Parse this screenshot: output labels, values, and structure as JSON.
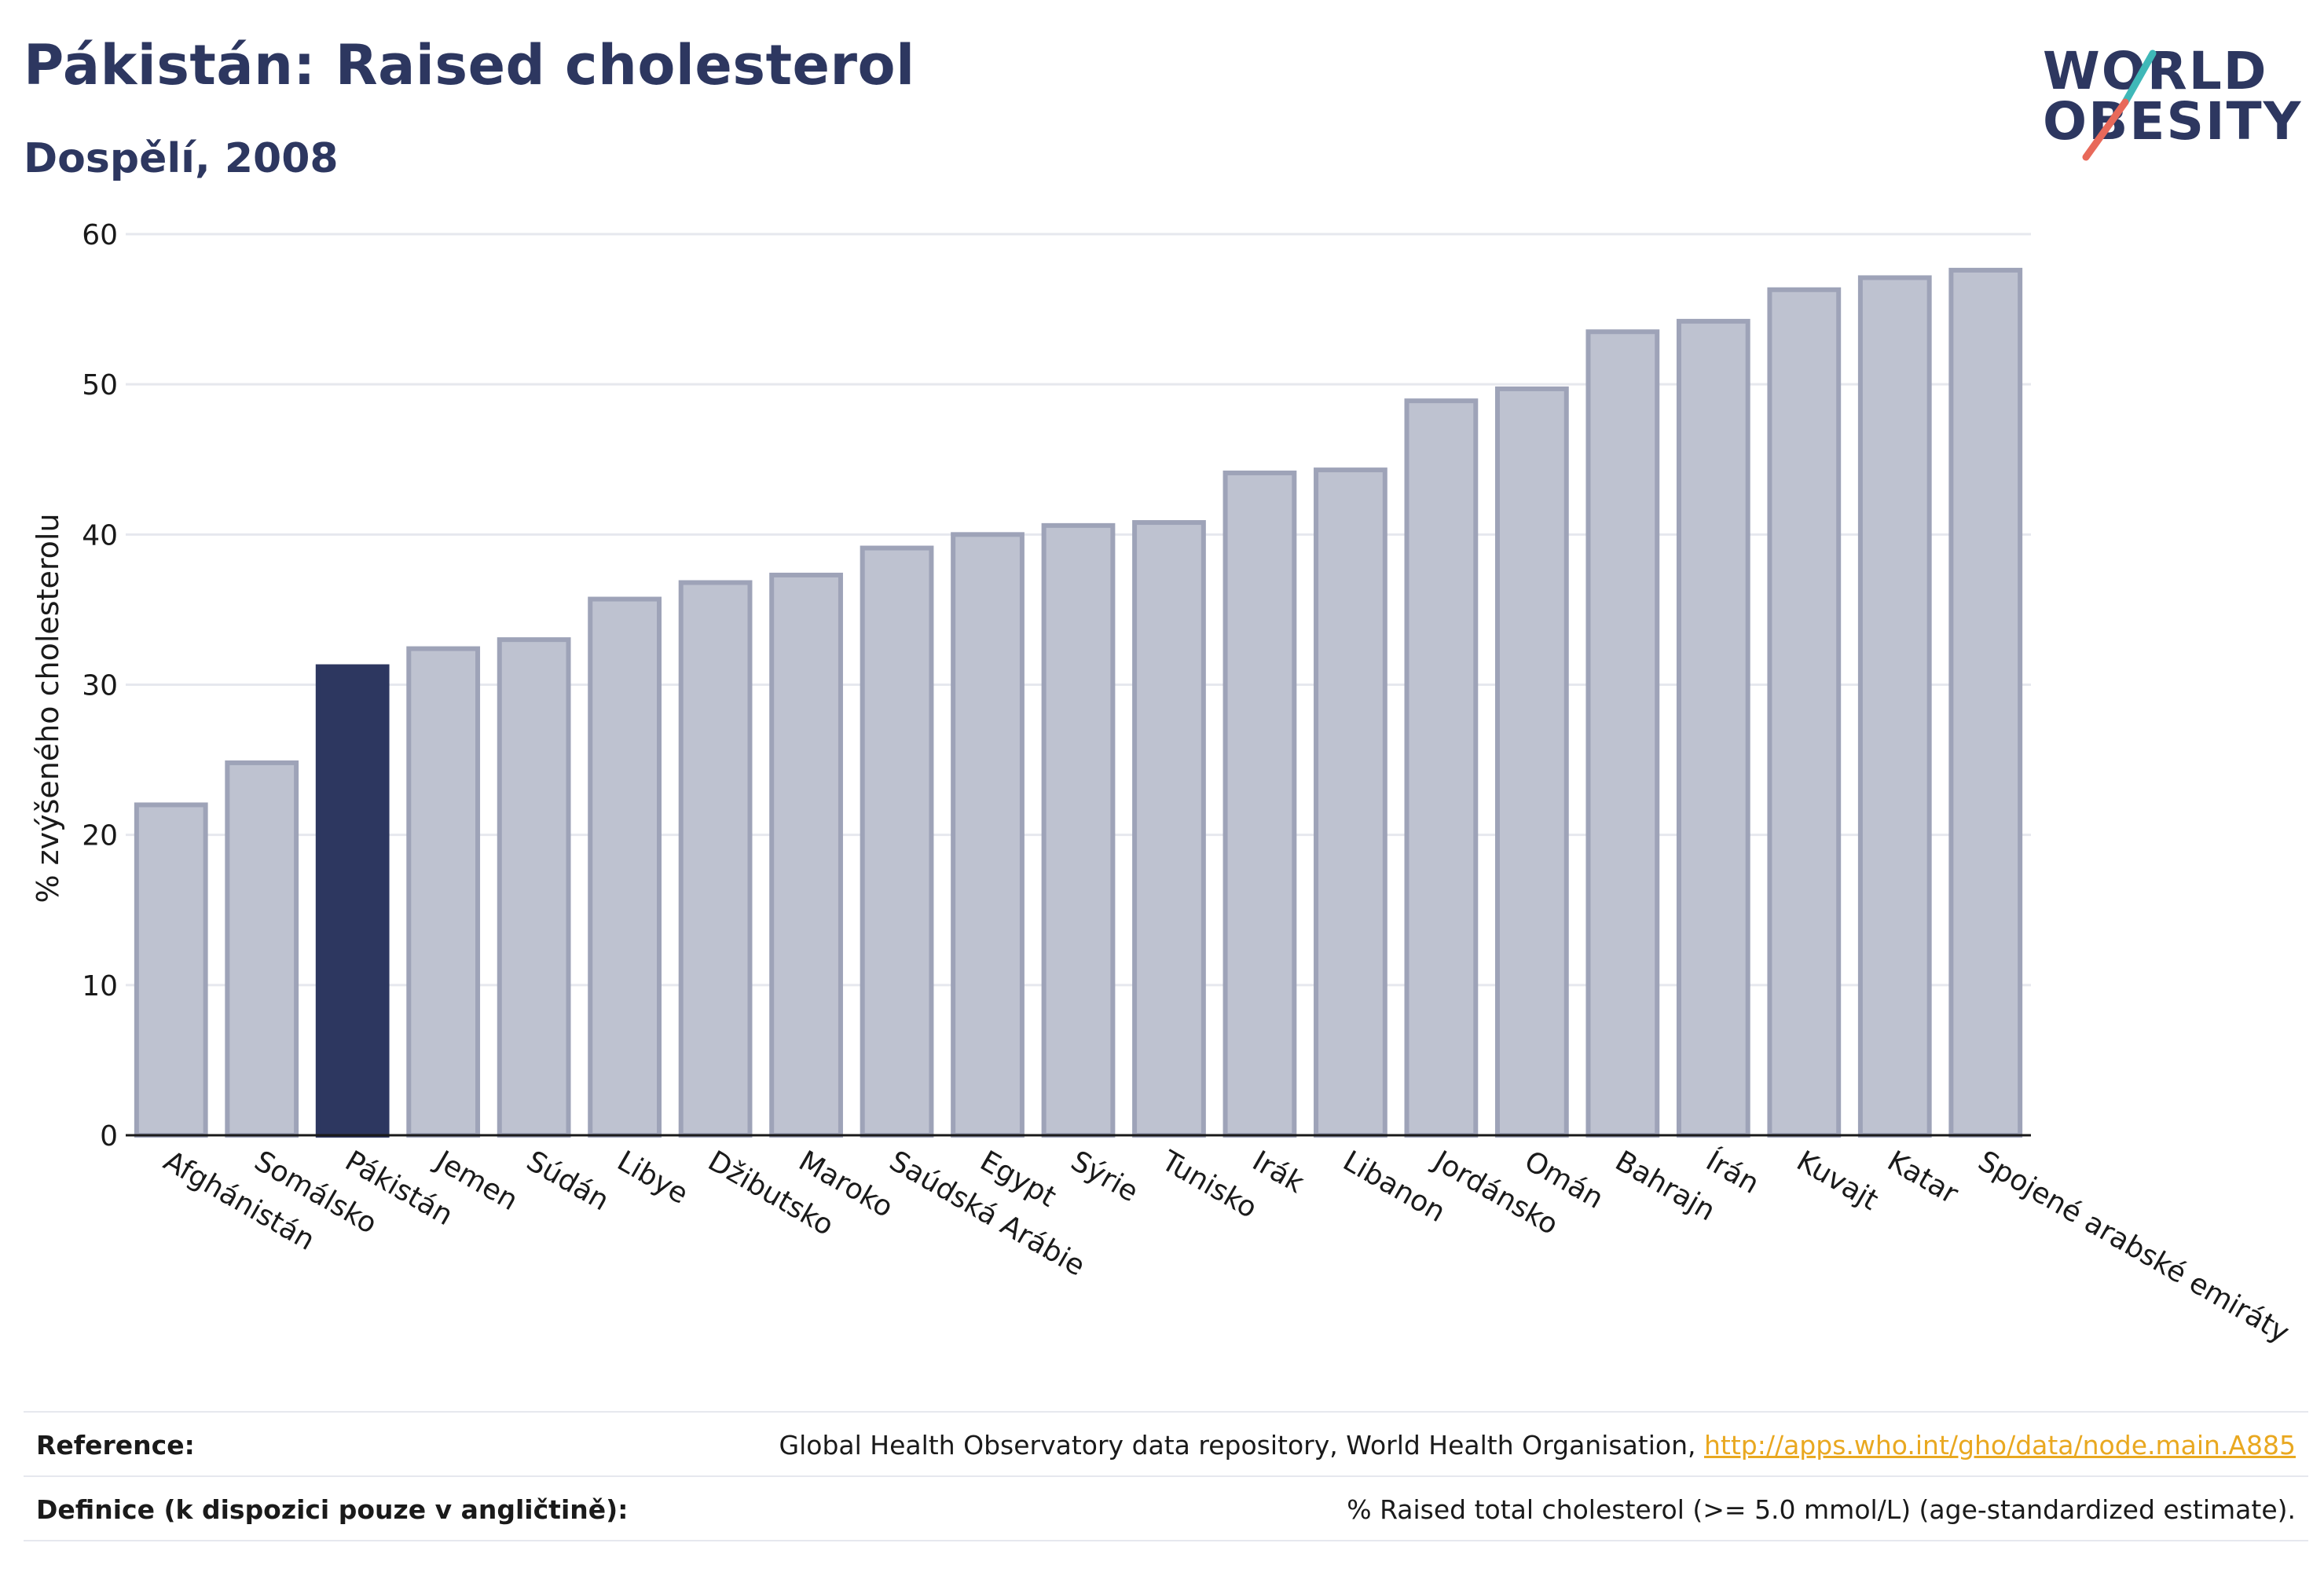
{
  "header": {
    "title": "Pákistán: Raised cholesterol",
    "subtitle": "Dospělí, 2008"
  },
  "logo": {
    "line1": "WORLD",
    "line2": "OBESITY",
    "slash_colors": [
      "#3fb8b8",
      "#e8695a"
    ]
  },
  "colors": {
    "highlight": "#2d3760",
    "bar_fill": "#bec2d0",
    "bar_stroke": "#9ea3b8",
    "grid": "#e6e8ee",
    "text": "#2d3760"
  },
  "chart_data": {
    "type": "bar",
    "ylabel": "% zvýšeného cholesterolu",
    "ylim": [
      0,
      60
    ],
    "yticks": [
      0,
      10,
      20,
      30,
      40,
      50,
      60
    ],
    "grid": true,
    "highlight": "Pákistán",
    "categories": [
      "Afghánistán",
      "Somálsko",
      "Pákistán",
      "Jemen",
      "Súdán",
      "Libye",
      "Džibutsko",
      "Maroko",
      "Saúdská Arábie",
      "Egypt",
      "Sýrie",
      "Tunisko",
      "Irák",
      "Libanon",
      "Jordánsko",
      "Omán",
      "Bahrajn",
      "Írán",
      "Kuvajt",
      "Katar",
      "Spojené arabské emiráty"
    ],
    "values": [
      22.0,
      24.8,
      31.2,
      32.4,
      33.0,
      35.7,
      36.8,
      37.3,
      39.1,
      40.0,
      40.6,
      40.8,
      44.1,
      44.3,
      48.9,
      49.7,
      53.5,
      54.2,
      56.3,
      57.1,
      57.6
    ]
  },
  "footer": {
    "reference_label": "Reference:",
    "reference_text": "Global Health Observatory data repository, World Health Organisation, ",
    "reference_link": "http://apps.who.int/gho/data/node.main.A885",
    "definition_label": "Definice (k dispozici pouze v angličtině):",
    "definition_text": "% Raised total cholesterol (>= 5.0 mmol/L) (age-standardized estimate)."
  }
}
